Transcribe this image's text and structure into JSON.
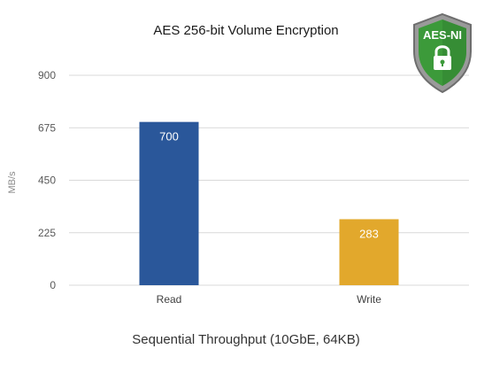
{
  "chart_data": {
    "type": "bar",
    "title": "AES 256-bit Volume Encryption",
    "xlabel": "Sequential Throughput (10GbE, 64KB)",
    "ylabel": "MB/s",
    "categories": [
      "Read",
      "Write"
    ],
    "values": [
      700,
      283
    ],
    "colors": [
      "#2a579a",
      "#e2a82c"
    ],
    "ylim": [
      0,
      900
    ],
    "yticks": [
      0,
      225,
      450,
      675,
      900
    ],
    "grid": true,
    "data_labels": true
  },
  "badge": {
    "text": "AES-NI",
    "icon": "padlock-shield-icon",
    "color": "#3c9a3a"
  }
}
